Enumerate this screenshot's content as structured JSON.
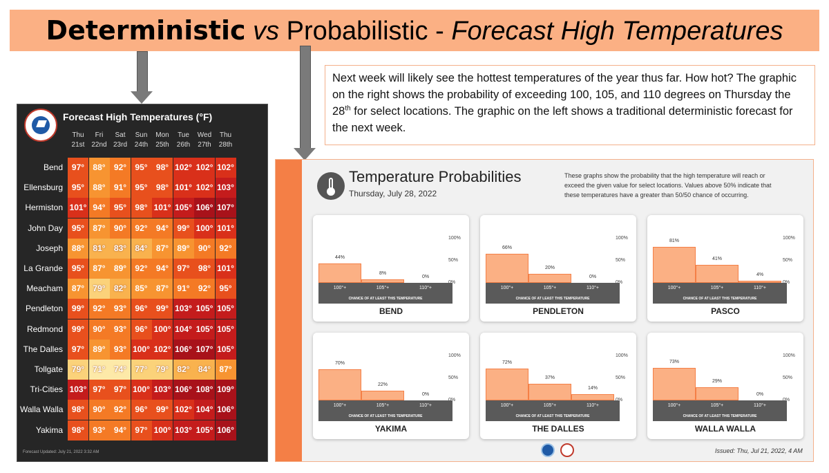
{
  "title": {
    "part1": "Deterministic",
    "part2": "vs",
    "part3": " Probabilistic - ",
    "part4": "Forecast High Temperatures"
  },
  "colors": {
    "banner": "#fbb084",
    "panel_bg": "#262626",
    "accent": "#f47f46"
  },
  "textbox": {
    "line_before_sup": "Next week will likely see the hottest temperatures of the year thus far. How hot? The graphic on the right shows the probability of exceeding 100, 105, and 110 degrees on Thursday the 28",
    "sup": "th",
    "line_after_sup": " for select locations. The graphic on the left shows a traditional deterministic forecast for the next week."
  },
  "deterministic": {
    "title": "Forecast High Temperatures (°F)",
    "logo": "nws-logo",
    "days": [
      {
        "dow": "Thu",
        "date": "21st"
      },
      {
        "dow": "Fri",
        "date": "22nd"
      },
      {
        "dow": "Sat",
        "date": "23rd"
      },
      {
        "dow": "Sun",
        "date": "24th"
      },
      {
        "dow": "Mon",
        "date": "25th"
      },
      {
        "dow": "Tue",
        "date": "26th"
      },
      {
        "dow": "Wed",
        "date": "27th"
      },
      {
        "dow": "Thu",
        "date": "28th"
      }
    ],
    "rows": [
      {
        "city": "Bend",
        "temps": [
          97,
          88,
          92,
          95,
          98,
          102,
          102,
          102
        ]
      },
      {
        "city": "Ellensburg",
        "temps": [
          95,
          88,
          91,
          95,
          98,
          101,
          102,
          103
        ]
      },
      {
        "city": "Hermiston",
        "temps": [
          101,
          94,
          95,
          98,
          101,
          105,
          106,
          107
        ]
      },
      {
        "city": "John Day",
        "temps": [
          95,
          87,
          90,
          92,
          94,
          99,
          100,
          101
        ]
      },
      {
        "city": "Joseph",
        "temps": [
          88,
          81,
          83,
          84,
          87,
          89,
          90,
          92
        ]
      },
      {
        "city": "La Grande",
        "temps": [
          95,
          87,
          89,
          92,
          94,
          97,
          98,
          101
        ]
      },
      {
        "city": "Meacham",
        "temps": [
          87,
          79,
          82,
          85,
          87,
          91,
          92,
          95
        ]
      },
      {
        "city": "Pendleton",
        "temps": [
          99,
          92,
          93,
          96,
          99,
          103,
          105,
          105
        ]
      },
      {
        "city": "Redmond",
        "temps": [
          99,
          90,
          93,
          96,
          100,
          104,
          105,
          105
        ]
      },
      {
        "city": "The Dalles",
        "temps": [
          97,
          89,
          93,
          100,
          102,
          106,
          107,
          105
        ]
      },
      {
        "city": "Tollgate",
        "temps": [
          79,
          71,
          74,
          77,
          79,
          82,
          84,
          87
        ]
      },
      {
        "city": "Tri-Cities",
        "temps": [
          103,
          97,
          97,
          100,
          103,
          106,
          108,
          109
        ]
      },
      {
        "city": "Walla Walla",
        "temps": [
          98,
          90,
          92,
          96,
          99,
          102,
          104,
          106
        ]
      },
      {
        "city": "Yakima",
        "temps": [
          98,
          93,
          94,
          97,
          100,
          103,
          105,
          106
        ]
      }
    ],
    "footer_label": "Forecast Updated:",
    "footer_value": "July 21, 2022 3:32 AM"
  },
  "probabilistic": {
    "icon": "thermometer-icon",
    "title": "Temperature Probabilities",
    "date": "Thursday, July 28, 2022",
    "description": "These graphs show the probability that the high temperature will reach or exceed the given value for select locations. Values above 50% indicate that these temperatures have a greater than 50/50 chance of occurring.",
    "categories": [
      "100°+",
      "105°+",
      "110°+"
    ],
    "axis_ticks": [
      "100%",
      "50%",
      "0%"
    ],
    "caption": "CHANCE OF AT LEAST THIS TEMPERATURE",
    "issued": "Issued: Thu, Jul 21, 2022, 4 AM"
  },
  "chart_data": [
    {
      "type": "bar",
      "title": "BEND",
      "categories": [
        "100°+",
        "105°+",
        "110°+"
      ],
      "values": [
        44,
        8,
        0
      ],
      "ylim": [
        0,
        100
      ]
    },
    {
      "type": "bar",
      "title": "PENDLETON",
      "categories": [
        "100°+",
        "105°+",
        "110°+"
      ],
      "values": [
        66,
        20,
        0
      ],
      "ylim": [
        0,
        100
      ]
    },
    {
      "type": "bar",
      "title": "PASCO",
      "categories": [
        "100°+",
        "105°+",
        "110°+"
      ],
      "values": [
        81,
        41,
        4
      ],
      "ylim": [
        0,
        100
      ]
    },
    {
      "type": "bar",
      "title": "YAKIMA",
      "categories": [
        "100°+",
        "105°+",
        "110°+"
      ],
      "values": [
        70,
        22,
        0
      ],
      "ylim": [
        0,
        100
      ]
    },
    {
      "type": "bar",
      "title": "THE DALLES",
      "categories": [
        "100°+",
        "105°+",
        "110°+"
      ],
      "values": [
        72,
        37,
        14
      ],
      "ylim": [
        0,
        100
      ]
    },
    {
      "type": "bar",
      "title": "WALLA WALLA",
      "categories": [
        "100°+",
        "105°+",
        "110°+"
      ],
      "values": [
        73,
        29,
        0
      ],
      "ylim": [
        0,
        100
      ]
    }
  ]
}
